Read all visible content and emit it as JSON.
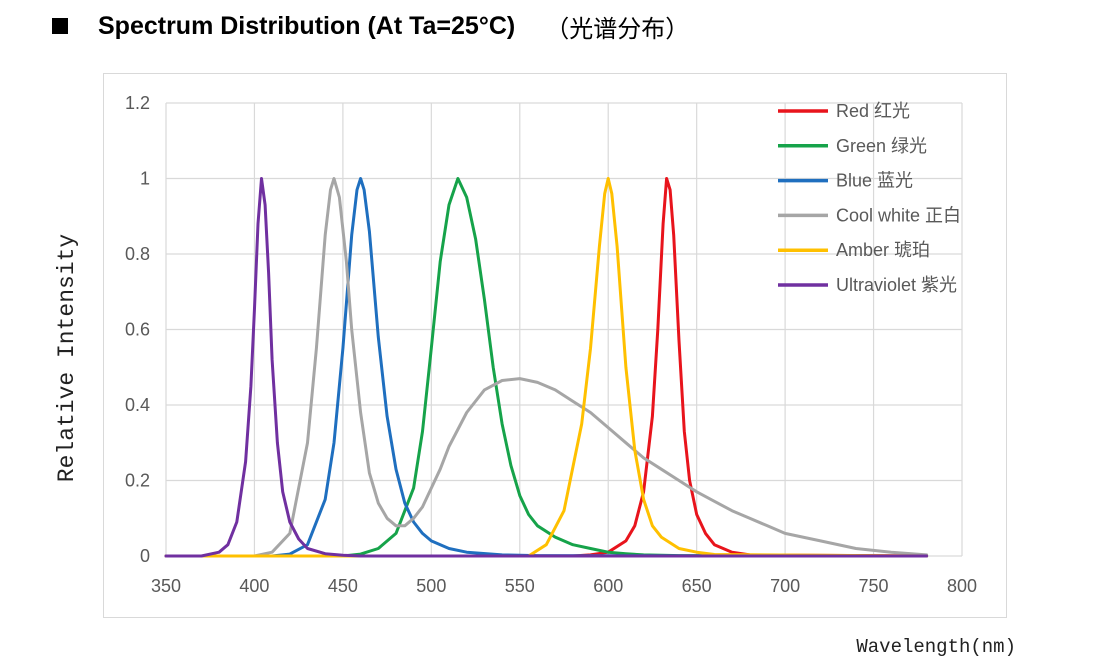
{
  "heading": {
    "title": "Spectrum Distribution (At Ta=25°C)",
    "title_cn": "（光谱分布）"
  },
  "chart_data": {
    "type": "line",
    "title": "",
    "xlabel": "Wavelength(nm)",
    "ylabel": "Relative Intensity",
    "xlim": [
      350,
      800
    ],
    "ylim": [
      0,
      1.2
    ],
    "x_ticks": [
      "350",
      "400",
      "450",
      "500",
      "550",
      "600",
      "650",
      "700",
      "750",
      "800"
    ],
    "y_ticks": [
      "0",
      "0.2",
      "0.4",
      "0.6",
      "0.8",
      "1",
      "1.2"
    ],
    "grid": true,
    "legend_position": "top-right",
    "series": [
      {
        "name": "Red 红光",
        "color": "#e8141c",
        "x": [
          350,
          580,
          590,
          600,
          610,
          615,
          620,
          625,
          628,
          631,
          633,
          635,
          637,
          640,
          643,
          646,
          650,
          655,
          660,
          670,
          680,
          780
        ],
        "y": [
          0,
          0,
          0.003,
          0.01,
          0.04,
          0.08,
          0.17,
          0.37,
          0.6,
          0.88,
          1.0,
          0.97,
          0.85,
          0.57,
          0.33,
          0.2,
          0.11,
          0.06,
          0.03,
          0.01,
          0.003,
          0
        ]
      },
      {
        "name": "Green 绿光",
        "color": "#16a34a",
        "x": [
          350,
          450,
          460,
          470,
          480,
          490,
          495,
          500,
          505,
          510,
          515,
          520,
          525,
          530,
          535,
          540,
          545,
          550,
          555,
          560,
          570,
          580,
          590,
          600,
          610,
          620,
          640,
          780
        ],
        "y": [
          0,
          0,
          0.005,
          0.02,
          0.06,
          0.18,
          0.33,
          0.55,
          0.78,
          0.93,
          1.0,
          0.95,
          0.84,
          0.68,
          0.5,
          0.35,
          0.24,
          0.16,
          0.11,
          0.08,
          0.05,
          0.03,
          0.02,
          0.01,
          0.006,
          0.003,
          0.001,
          0
        ]
      },
      {
        "name": "Blue 蓝光",
        "color": "#1f6fbf",
        "x": [
          350,
          410,
          420,
          430,
          440,
          445,
          450,
          455,
          458,
          460,
          462,
          465,
          470,
          475,
          480,
          485,
          490,
          495,
          500,
          510,
          520,
          540,
          560,
          780
        ],
        "y": [
          0,
          0,
          0.005,
          0.03,
          0.15,
          0.3,
          0.55,
          0.85,
          0.97,
          1.0,
          0.97,
          0.86,
          0.58,
          0.37,
          0.23,
          0.14,
          0.09,
          0.06,
          0.04,
          0.02,
          0.01,
          0.003,
          0.001,
          0
        ]
      },
      {
        "name": "Cool white 正白",
        "color": "#a6a6a6",
        "x": [
          350,
          400,
          410,
          420,
          430,
          435,
          440,
          443,
          445,
          448,
          452,
          455,
          460,
          465,
          470,
          475,
          480,
          485,
          490,
          495,
          500,
          505,
          510,
          520,
          530,
          540,
          550,
          560,
          570,
          580,
          590,
          600,
          610,
          620,
          630,
          640,
          650,
          660,
          670,
          680,
          690,
          700,
          720,
          740,
          760,
          780
        ],
        "y": [
          0,
          0,
          0.01,
          0.06,
          0.3,
          0.55,
          0.85,
          0.97,
          1.0,
          0.95,
          0.78,
          0.6,
          0.38,
          0.22,
          0.14,
          0.1,
          0.08,
          0.08,
          0.1,
          0.13,
          0.18,
          0.23,
          0.29,
          0.38,
          0.44,
          0.465,
          0.47,
          0.46,
          0.44,
          0.41,
          0.38,
          0.34,
          0.3,
          0.26,
          0.23,
          0.2,
          0.17,
          0.145,
          0.12,
          0.1,
          0.08,
          0.06,
          0.04,
          0.02,
          0.01,
          0.003
        ]
      },
      {
        "name": "Amber 琥珀",
        "color": "#ffc000",
        "x": [
          350,
          555,
          565,
          575,
          585,
          590,
          595,
          598,
          600,
          602,
          605,
          610,
          615,
          620,
          625,
          630,
          640,
          650,
          660,
          780
        ],
        "y": [
          0,
          0,
          0.03,
          0.12,
          0.35,
          0.55,
          0.82,
          0.96,
          1.0,
          0.96,
          0.82,
          0.5,
          0.28,
          0.15,
          0.08,
          0.05,
          0.02,
          0.01,
          0.004,
          0
        ]
      },
      {
        "name": "Ultraviolet 紫光",
        "color": "#7030a0",
        "x": [
          350,
          370,
          380,
          385,
          390,
          395,
          398,
          400,
          402,
          404,
          406,
          408,
          410,
          413,
          416,
          420,
          425,
          430,
          440,
          450,
          460,
          780
        ],
        "y": [
          0,
          0,
          0.01,
          0.03,
          0.09,
          0.25,
          0.45,
          0.65,
          0.88,
          1.0,
          0.93,
          0.75,
          0.52,
          0.3,
          0.17,
          0.09,
          0.045,
          0.02,
          0.006,
          0.002,
          0,
          0
        ]
      }
    ]
  }
}
